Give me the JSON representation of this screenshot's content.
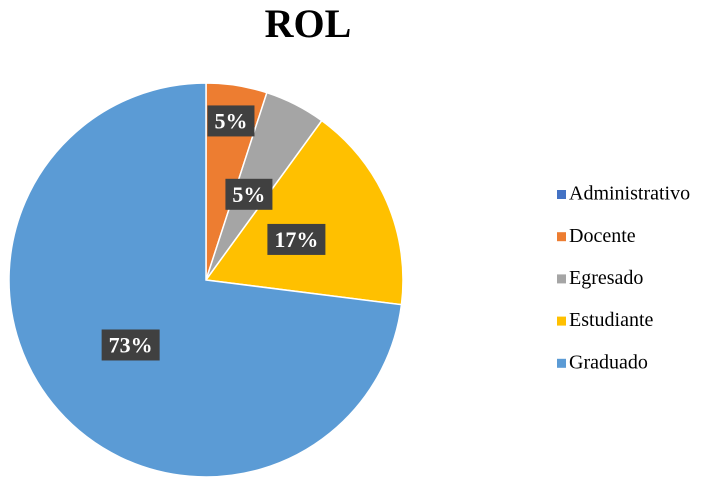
{
  "chart_data": {
    "type": "pie",
    "title": "ROL",
    "categories": [
      "Administrativo",
      "Docente",
      "Egresado",
      "Estudiante",
      "Graduado"
    ],
    "values": [
      0,
      5,
      5,
      17,
      73
    ],
    "value_labels": [
      null,
      "5%",
      "5%",
      "17%",
      "73%"
    ],
    "colors": [
      "#4472c4",
      "#ed7d31",
      "#a5a5a5",
      "#ffc000",
      "#5b9bd5"
    ],
    "legend": "right"
  }
}
